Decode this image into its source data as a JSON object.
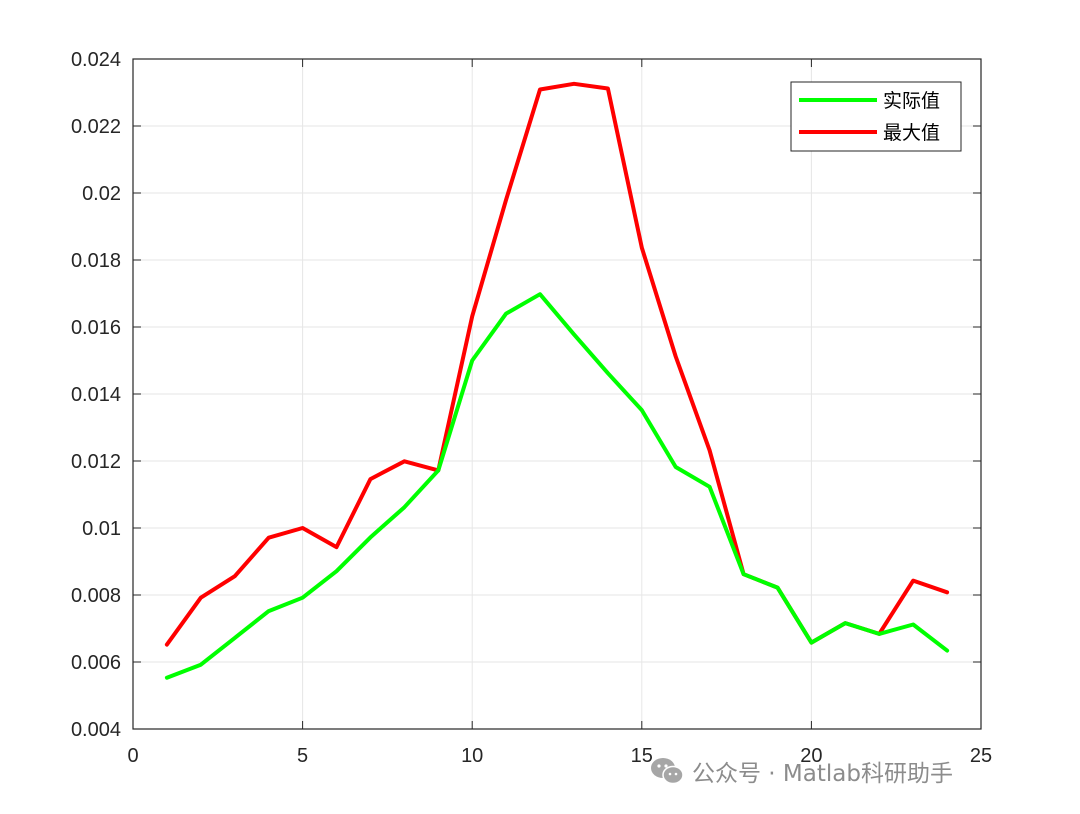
{
  "chart_data": {
    "type": "line",
    "title": "",
    "xlabel": "",
    "ylabel": "",
    "xlim": [
      0,
      25
    ],
    "ylim": [
      0.004,
      0.024
    ],
    "x_ticks": [
      0,
      5,
      10,
      15,
      20,
      25
    ],
    "y_ticks": [
      0.004,
      0.006,
      0.008,
      0.01,
      0.012,
      0.014,
      0.016,
      0.018,
      0.02,
      0.022,
      0.024
    ],
    "x_tick_labels": [
      "0",
      "5",
      "10",
      "15",
      "20",
      "25"
    ],
    "y_tick_labels": [
      "0.004",
      "0.006",
      "0.008",
      "0.01",
      "0.012",
      "0.014",
      "0.016",
      "0.018",
      "0.02",
      "0.022",
      "0.024"
    ],
    "grid": true,
    "legend_position": "top-right",
    "x": [
      1,
      2,
      3,
      4,
      5,
      6,
      7,
      8,
      9,
      10,
      11,
      12,
      13,
      14,
      15,
      16,
      17,
      18,
      19,
      20,
      21,
      22,
      23,
      24
    ],
    "series": [
      {
        "name": "实际值",
        "color": "#00ff00",
        "values": [
          0.00553,
          0.00592,
          0.00672,
          0.00752,
          0.00792,
          0.00871,
          0.00972,
          0.01062,
          0.01172,
          0.015,
          0.0164,
          0.01698,
          0.01578,
          0.01462,
          0.01352,
          0.01182,
          0.01123,
          0.00862,
          0.00822,
          0.00658,
          0.00716,
          0.00684,
          0.00712,
          0.00634
        ]
      },
      {
        "name": "最大值",
        "color": "#ff0000",
        "values": [
          0.00652,
          0.00792,
          0.00856,
          0.00971,
          0.01,
          0.00943,
          0.01146,
          0.01199,
          0.01172,
          0.01632,
          0.0198,
          0.02309,
          0.02326,
          0.02312,
          0.01837,
          0.01512,
          0.01232,
          0.00862,
          0.00822,
          0.00658,
          0.00716,
          0.00684,
          0.00843,
          0.00808
        ]
      }
    ]
  },
  "watermark": {
    "icon": "wechat-icon",
    "text": "公众号 · Matlab科研助手"
  }
}
